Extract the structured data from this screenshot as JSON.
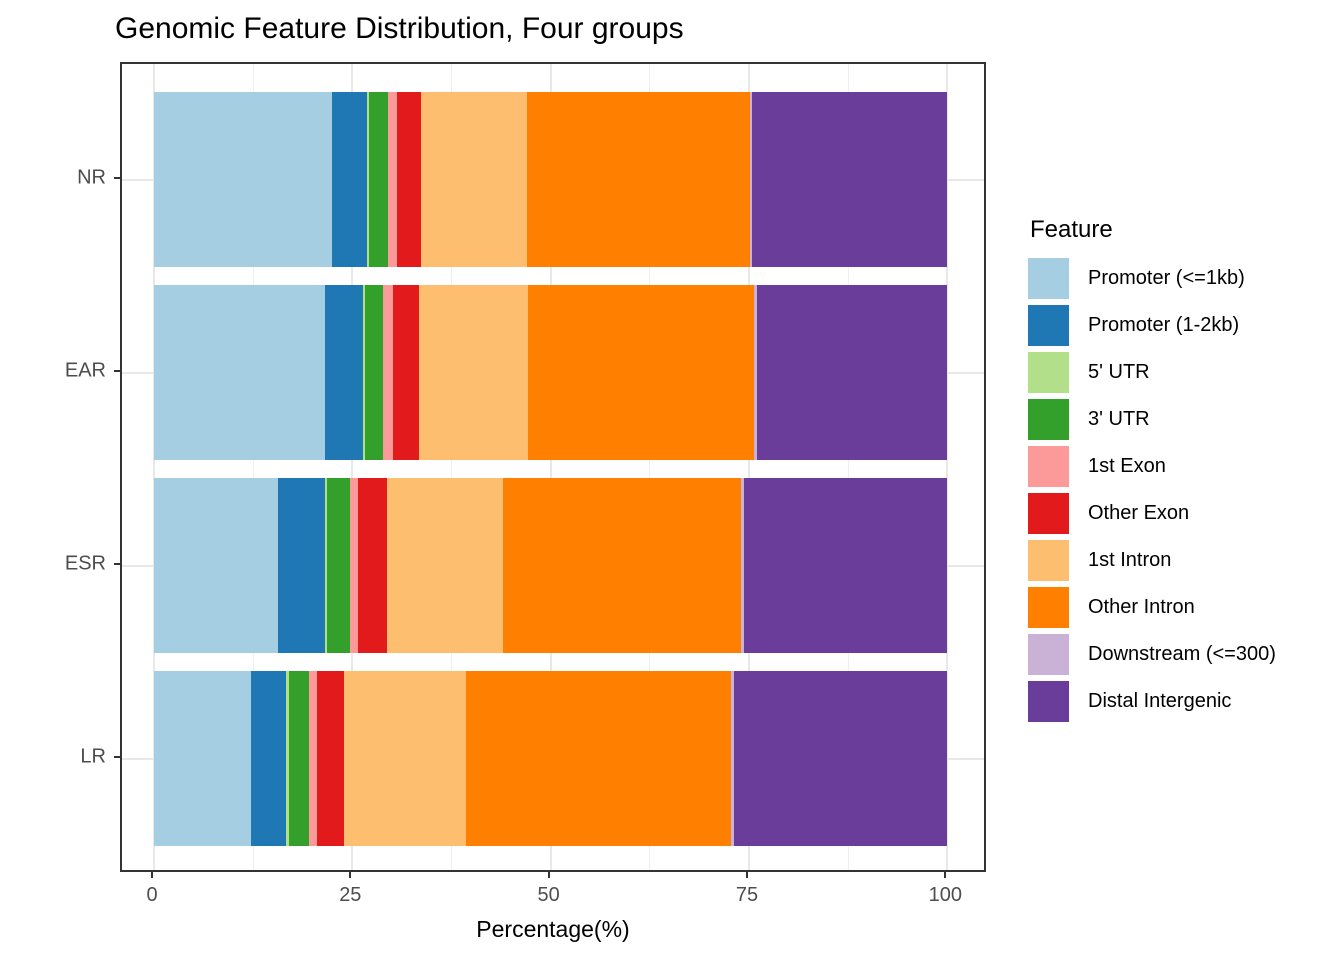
{
  "chart_data": {
    "type": "bar",
    "orientation": "horizontal",
    "stacked": true,
    "title": "Genomic Feature Distribution, Four groups",
    "xlabel": "Percentage(%)",
    "ylabel": "",
    "xlim": [
      0,
      100
    ],
    "x_ticks": [
      0,
      25,
      50,
      75,
      100
    ],
    "x_tick_labels": [
      "0",
      "25",
      "50",
      "75",
      "100"
    ],
    "minor_x_ticks": [
      12.5,
      37.5,
      62.5,
      87.5
    ],
    "grid": "on",
    "categories": [
      "NR",
      "EAR",
      "ESR",
      "LR"
    ],
    "legend_title": "Feature",
    "legend_position": "right",
    "series": [
      {
        "name": "Promoter (<=1kb)",
        "color": "#A6CEE3",
        "values": [
          22.4,
          21.6,
          15.6,
          12.2
        ]
      },
      {
        "name": "Promoter (1-2kb)",
        "color": "#1F78B4",
        "values": [
          4.4,
          4.7,
          5.9,
          4.5
        ]
      },
      {
        "name": "5' UTR",
        "color": "#B2DF8A",
        "values": [
          0.3,
          0.3,
          0.3,
          0.3
        ]
      },
      {
        "name": "3' UTR",
        "color": "#33A02C",
        "values": [
          2.4,
          2.3,
          2.9,
          2.5
        ]
      },
      {
        "name": "1st Exon",
        "color": "#FB9A99",
        "values": [
          1.1,
          1.2,
          1.0,
          1.1
        ]
      },
      {
        "name": "Other Exon",
        "color": "#E31A1C",
        "values": [
          3.0,
          3.3,
          3.7,
          3.4
        ]
      },
      {
        "name": "1st Intron",
        "color": "#FDBF6F",
        "values": [
          13.4,
          13.7,
          14.6,
          15.3
        ]
      },
      {
        "name": "Other Intron",
        "color": "#FF7F00",
        "values": [
          28.1,
          28.6,
          30.0,
          33.5
        ]
      },
      {
        "name": "Downstream (<=300)",
        "color": "#CAB2D6",
        "values": [
          0.3,
          0.3,
          0.4,
          0.3
        ]
      },
      {
        "name": "Distal Intergenic",
        "color": "#6A3D9A",
        "values": [
          24.6,
          24.0,
          25.6,
          26.9
        ]
      }
    ]
  }
}
